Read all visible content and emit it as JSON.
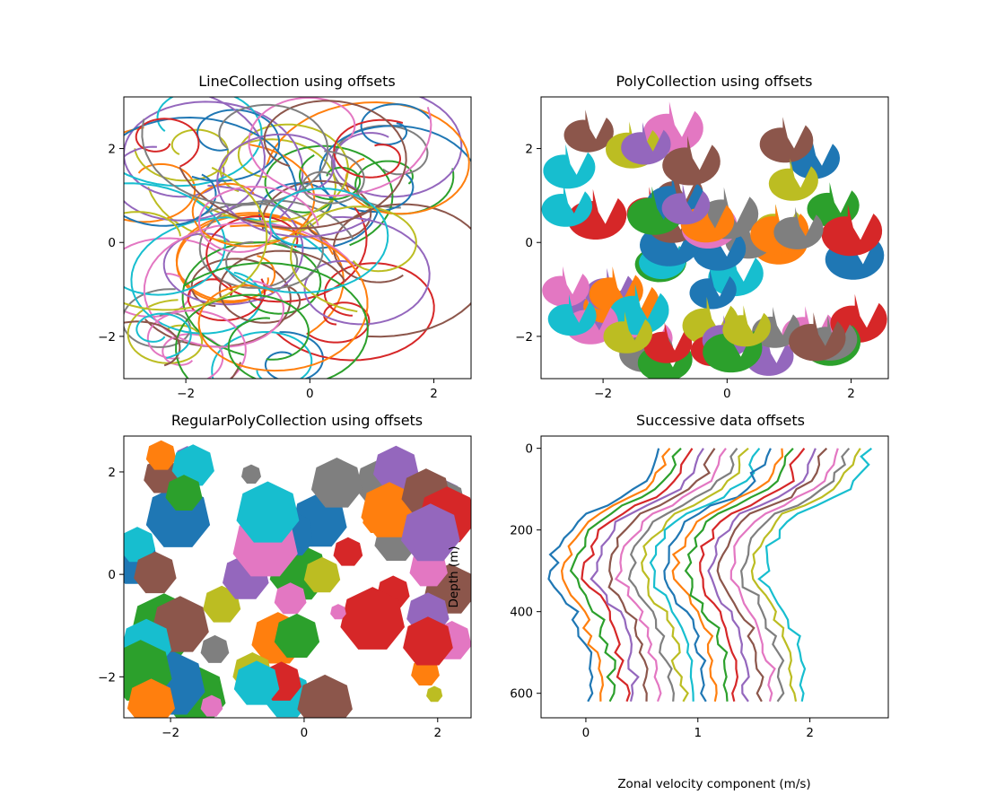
{
  "palette": [
    "#1f77b4",
    "#ff7f0e",
    "#2ca02c",
    "#d62728",
    "#9467bd",
    "#8c564b",
    "#e377c2",
    "#7f7f7f",
    "#bcbd22",
    "#17becf"
  ],
  "chart_data": [
    {
      "type": "line",
      "title": "LineCollection using offsets",
      "xlabel": "",
      "ylabel": "",
      "xlim": [
        -3,
        2.6
      ],
      "ylim": [
        -2.9,
        3.1
      ],
      "xticks": [
        -2,
        0,
        2
      ],
      "yticks": [
        -2,
        0,
        2
      ],
      "series_count": 60,
      "description_type": "spiral curves placed at random offsets"
    },
    {
      "type": "scatter",
      "title": "PolyCollection using offsets",
      "xlabel": "",
      "ylabel": "",
      "xlim": [
        -3,
        2.6
      ],
      "ylim": [
        -2.9,
        3.1
      ],
      "xticks": [
        -2,
        0,
        2
      ],
      "yticks": [
        -2,
        0,
        2
      ],
      "series_count": 60
    },
    {
      "type": "scatter",
      "title": "RegularPolyCollection using offsets",
      "xlabel": "",
      "ylabel": "",
      "xlim": [
        -2.7,
        2.5
      ],
      "ylim": [
        -2.8,
        2.7
      ],
      "xticks": [
        -2,
        0,
        2
      ],
      "yticks": [
        -2,
        0,
        2
      ],
      "series_count": 60
    },
    {
      "type": "line",
      "title": "Successive data offsets",
      "xlabel": "Zonal velocity component (m/s)",
      "ylabel": "Depth (m)",
      "xlim": [
        -0.4,
        2.7
      ],
      "ylim": [
        660,
        -30
      ],
      "xticks": [
        0,
        1,
        2
      ],
      "yticks": [
        0,
        200,
        400,
        600
      ],
      "depth": [
        0,
        20,
        40,
        60,
        80,
        100,
        120,
        140,
        160,
        180,
        200,
        220,
        240,
        260,
        280,
        300,
        320,
        340,
        360,
        380,
        400,
        420,
        440,
        460,
        480,
        500,
        520,
        540,
        560,
        580,
        600,
        620
      ],
      "base_profile": [
        0.65,
        0.6,
        0.58,
        0.55,
        0.5,
        0.42,
        0.3,
        0.15,
        0.0,
        -0.1,
        -0.15,
        -0.2,
        -0.25,
        -0.27,
        -0.28,
        -0.3,
        -0.3,
        -0.27,
        -0.22,
        -0.17,
        -0.12,
        -0.08,
        -0.05,
        -0.03,
        -0.02,
        0.0,
        0.02,
        0.03,
        0.04,
        0.05,
        0.05,
        0.04
      ],
      "series_offset_step": 0.1,
      "series_count": 20
    }
  ]
}
